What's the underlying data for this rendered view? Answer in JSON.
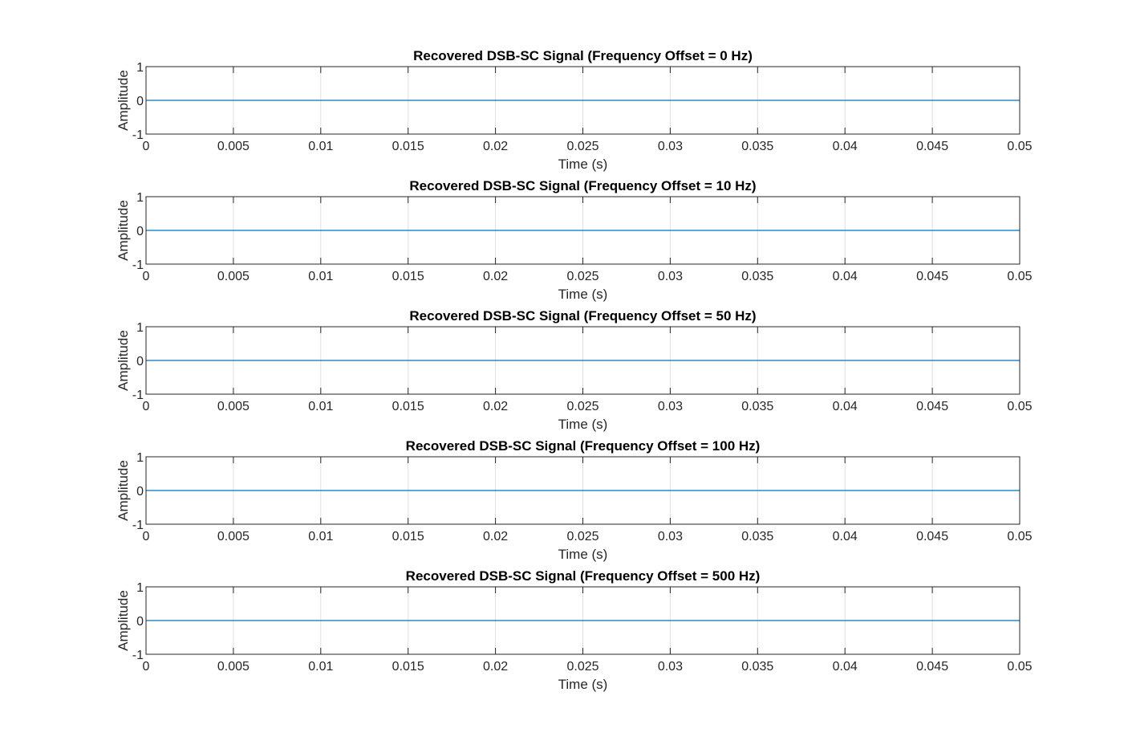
{
  "chart_data": [
    {
      "type": "line",
      "title": "Recovered DSB-SC Signal (Frequency Offset = 0 Hz)",
      "xlabel": "Time (s)",
      "ylabel": "Amplitude",
      "xlim": [
        0,
        0.05
      ],
      "ylim": [
        -1,
        1
      ],
      "xticks": [
        "0",
        "0.005",
        "0.01",
        "0.015",
        "0.02",
        "0.025",
        "0.03",
        "0.035",
        "0.04",
        "0.045",
        "0.05"
      ],
      "yticks": [
        "-1",
        "0",
        "1"
      ],
      "grid": "x",
      "series": [
        {
          "x": [
            0,
            0.05
          ],
          "y": [
            0,
            0
          ],
          "color": "#0072BD"
        }
      ]
    },
    {
      "type": "line",
      "title": "Recovered DSB-SC Signal (Frequency Offset = 10 Hz)",
      "xlabel": "Time (s)",
      "ylabel": "Amplitude",
      "xlim": [
        0,
        0.05
      ],
      "ylim": [
        -1,
        1
      ],
      "xticks": [
        "0",
        "0.005",
        "0.01",
        "0.015",
        "0.02",
        "0.025",
        "0.03",
        "0.035",
        "0.04",
        "0.045",
        "0.05"
      ],
      "yticks": [
        "-1",
        "0",
        "1"
      ],
      "grid": "x",
      "series": [
        {
          "x": [
            0,
            0.05
          ],
          "y": [
            0,
            0
          ],
          "color": "#0072BD"
        }
      ]
    },
    {
      "type": "line",
      "title": "Recovered DSB-SC Signal (Frequency Offset = 50 Hz)",
      "xlabel": "Time (s)",
      "ylabel": "Amplitude",
      "xlim": [
        0,
        0.05
      ],
      "ylim": [
        -1,
        1
      ],
      "xticks": [
        "0",
        "0.005",
        "0.01",
        "0.015",
        "0.02",
        "0.025",
        "0.03",
        "0.035",
        "0.04",
        "0.045",
        "0.05"
      ],
      "yticks": [
        "-1",
        "0",
        "1"
      ],
      "grid": "x",
      "series": [
        {
          "x": [
            0,
            0.05
          ],
          "y": [
            0,
            0
          ],
          "color": "#0072BD"
        }
      ]
    },
    {
      "type": "line",
      "title": "Recovered DSB-SC Signal (Frequency Offset = 100 Hz)",
      "xlabel": "Time (s)",
      "ylabel": "Amplitude",
      "xlim": [
        0,
        0.05
      ],
      "ylim": [
        -1,
        1
      ],
      "xticks": [
        "0",
        "0.005",
        "0.01",
        "0.015",
        "0.02",
        "0.025",
        "0.03",
        "0.035",
        "0.04",
        "0.045",
        "0.05"
      ],
      "yticks": [
        "-1",
        "0",
        "1"
      ],
      "grid": "x",
      "series": [
        {
          "x": [
            0,
            0.05
          ],
          "y": [
            0,
            0
          ],
          "color": "#0072BD"
        }
      ]
    },
    {
      "type": "line",
      "title": "Recovered DSB-SC Signal (Frequency Offset = 500 Hz)",
      "xlabel": "Time (s)",
      "ylabel": "Amplitude",
      "xlim": [
        0,
        0.05
      ],
      "ylim": [
        -1,
        1
      ],
      "xticks": [
        "0",
        "0.005",
        "0.01",
        "0.015",
        "0.02",
        "0.025",
        "0.03",
        "0.035",
        "0.04",
        "0.045",
        "0.05"
      ],
      "yticks": [
        "-1",
        "0",
        "1"
      ],
      "grid": "x",
      "series": [
        {
          "x": [
            0,
            0.05
          ],
          "y": [
            0,
            0
          ],
          "color": "#0072BD"
        }
      ]
    }
  ]
}
